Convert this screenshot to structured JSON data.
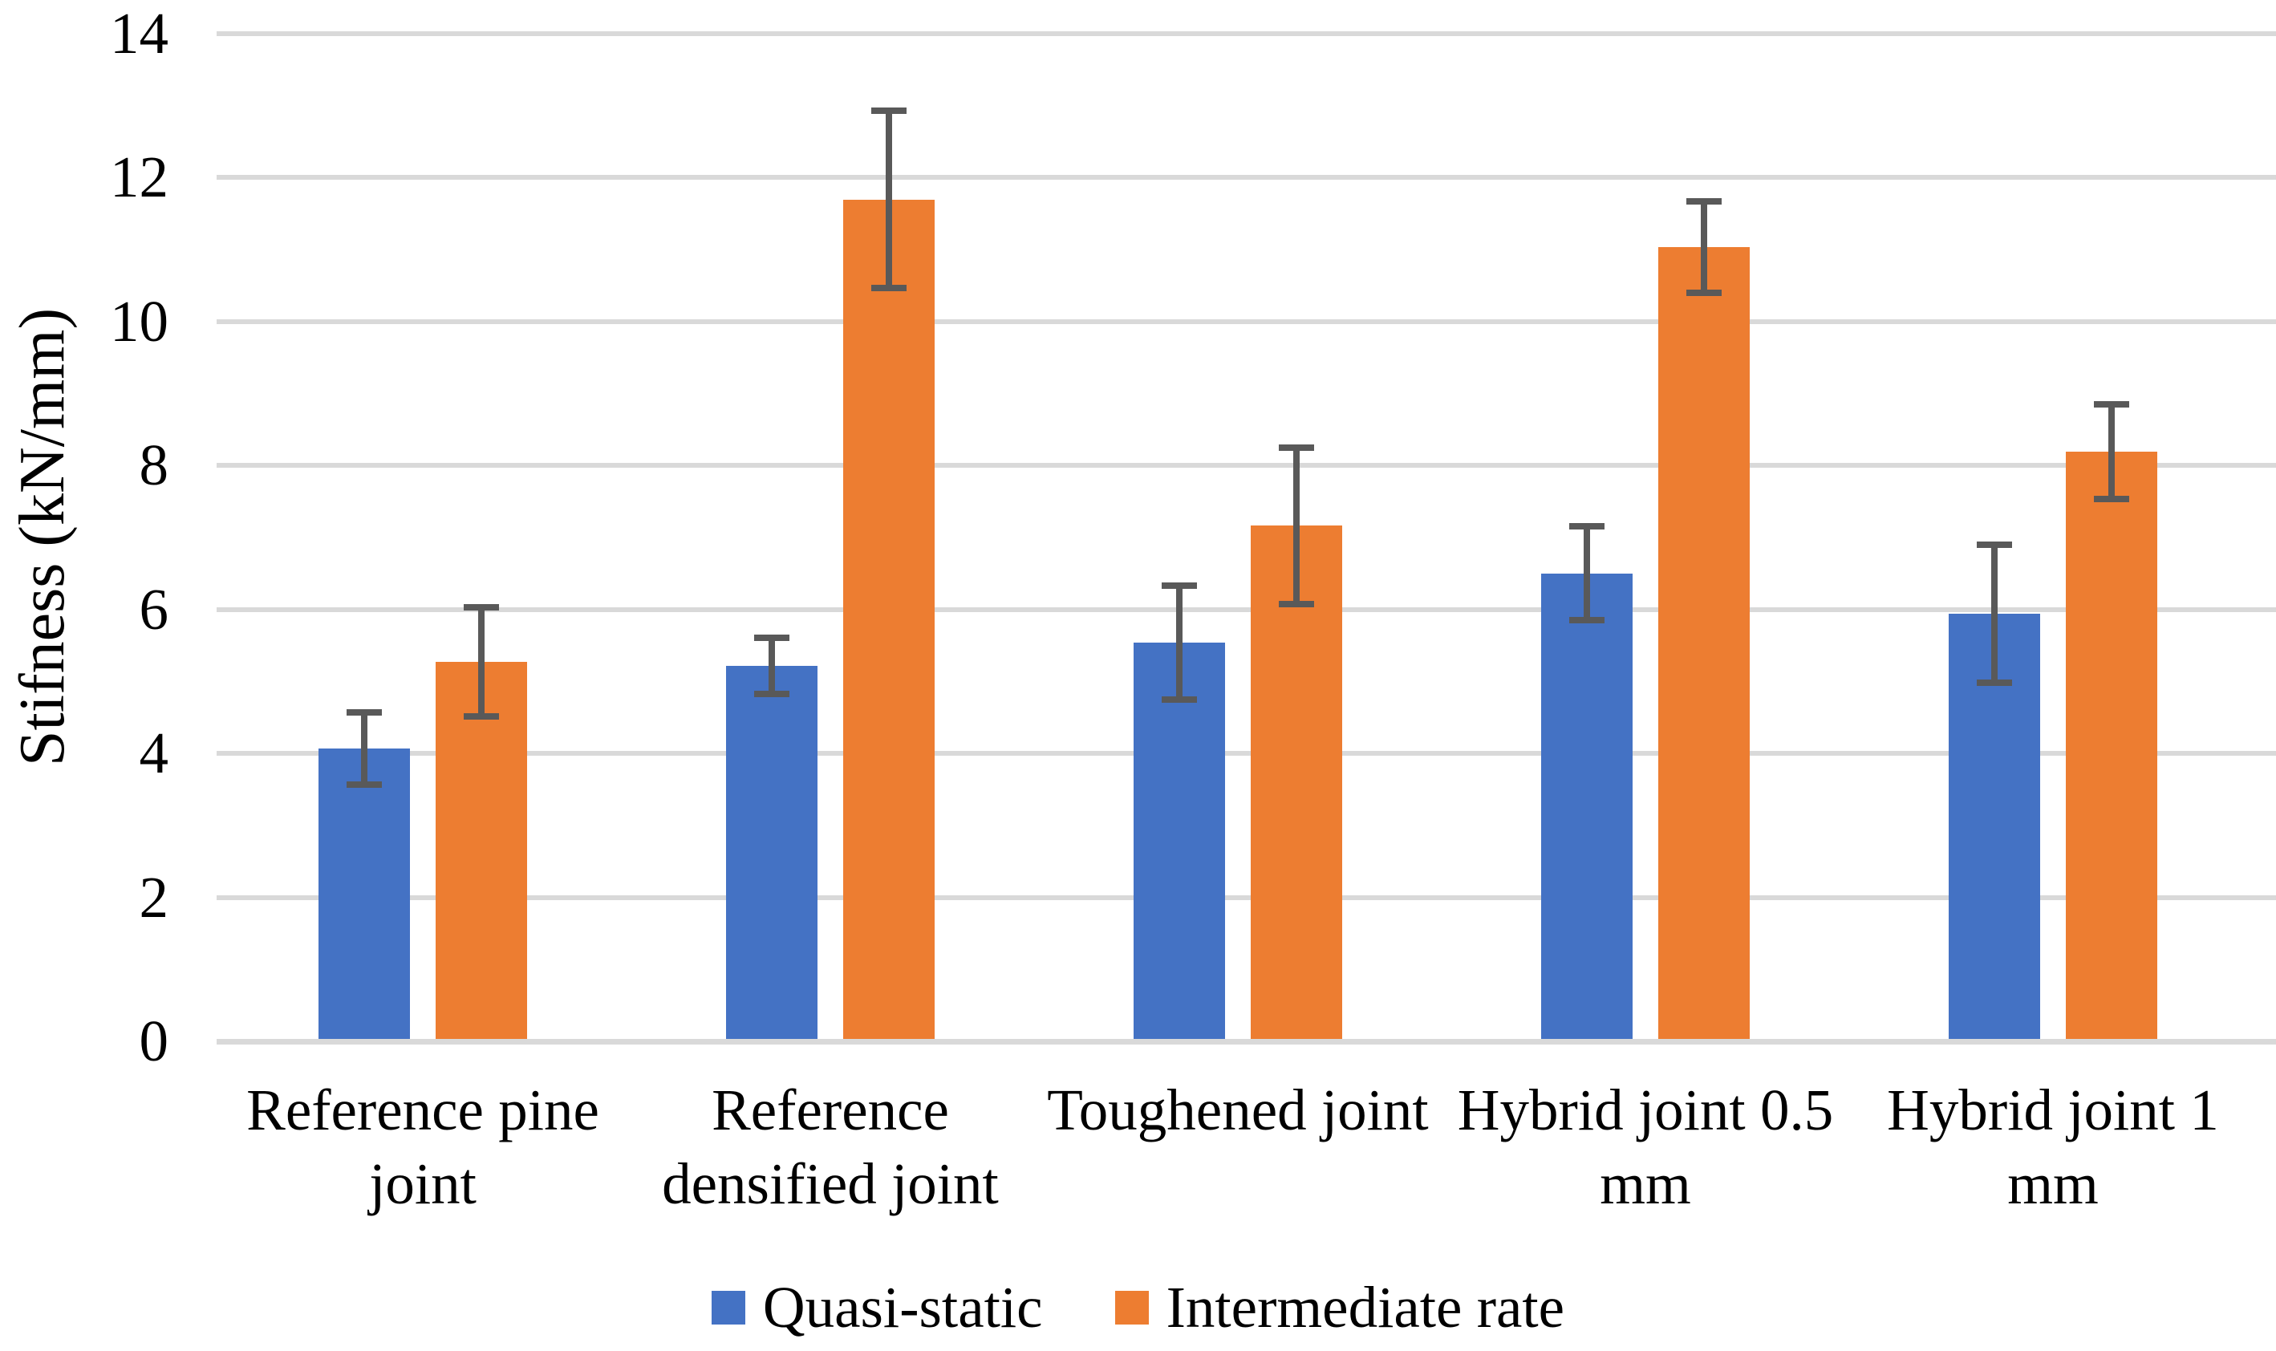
{
  "page": {
    "background": "#ffffff"
  },
  "chart_data": {
    "type": "bar",
    "title": "",
    "xlabel": "",
    "ylabel": "Stifness (kN/mm)",
    "ylim": [
      0,
      14
    ],
    "yticks": [
      0,
      2,
      4,
      6,
      8,
      10,
      12,
      14
    ],
    "grid": "horizontal",
    "gridline_color": "#D9D9D9",
    "axis_line_color": "#D9D9D9",
    "error_bar_color": "#595959",
    "text_color": "#000000",
    "legend_position": "bottom-center",
    "categories": [
      "Reference pine joint",
      "Reference densified joint",
      "Toughened joint",
      "Hybrid joint 0.5 mm",
      "Hybrid joint 1 mm"
    ],
    "category_label_lines": [
      [
        "Reference pine",
        "joint"
      ],
      [
        "Reference",
        "densified joint"
      ],
      [
        "Toughened joint"
      ],
      [
        "Hybrid joint 0.5",
        "mm"
      ],
      [
        "Hybrid joint 1",
        "mm"
      ]
    ],
    "series": [
      {
        "name": "Quasi-static",
        "color": "#4472C4",
        "values": [
          4.07,
          5.21,
          5.54,
          6.5,
          5.94
        ],
        "errors": [
          0.5,
          0.39,
          0.79,
          0.65,
          0.96
        ]
      },
      {
        "name": "Intermediate rate",
        "color": "#ED7D31",
        "values": [
          5.27,
          11.69,
          7.16,
          11.03,
          8.19
        ],
        "errors": [
          0.76,
          1.23,
          1.09,
          0.64,
          0.66
        ]
      }
    ]
  }
}
